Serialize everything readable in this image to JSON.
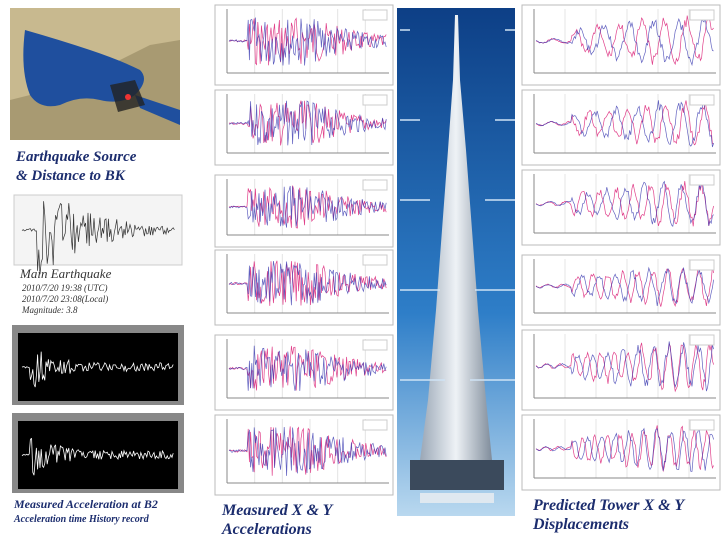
{
  "source_caption": [
    "Earthquake Source",
    "& Distance to BK"
  ],
  "main_earthquake": {
    "title": "Main Earthquake",
    "lines": [
      "2010/7/20 19:38 (UTC)",
      "2010/7/20 23:08(Local)",
      "Magnitude: 3.8"
    ]
  },
  "measured_b2": {
    "title": "Measured Acceleration at B2",
    "subtitle": "Acceleration time History record"
  },
  "accel_caption": [
    "Measured  X & Y",
    "Accelerations"
  ],
  "disp_caption": [
    "Predicted Tower X & Y",
    "Displacements"
  ]
}
